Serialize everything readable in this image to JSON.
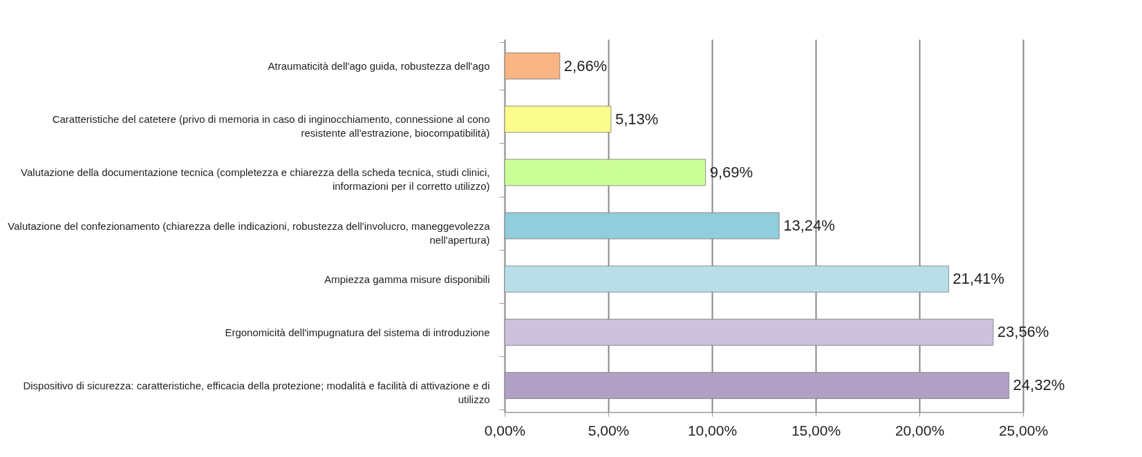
{
  "chart_data": {
    "type": "bar",
    "orientation": "horizontal",
    "categories": [
      "Atraumaticità dell'ago guida, robustezza dell'ago",
      "Caratteristiche del catetere (privo di memoria in caso di inginocchiamento, connessione al cono resistente all'estrazione, biocompatibilità)",
      "Valutazione della documentazione tecnica (completezza e chiarezza della scheda tecnica, studi clinici, informazioni per il corretto utilizzo)",
      "Valutazione del confezionamento (chiarezza delle indicazioni, robustezza dell'involucro, maneggevolezza nell'apertura)",
      "Ampiezza gamma misure disponibili",
      "Ergonomicità dell'impugnatura del sistema di introduzione",
      "Dispositivo di sicurezza: caratteristiche, efficacia della protezione; modalità e facilità di attivazione e di utilizzo"
    ],
    "values": [
      2.66,
      5.13,
      9.69,
      13.24,
      21.41,
      23.56,
      24.32
    ],
    "value_labels": [
      "2,66%",
      "5,13%",
      "9,69%",
      "13,24%",
      "21,41%",
      "23,56%",
      "24,32%"
    ],
    "colors": [
      "#f8b482",
      "#fafc8c",
      "#ccfe98",
      "#92cddc",
      "#b8dfe8",
      "#cdc1dc",
      "#b1a0c6"
    ],
    "xlim": [
      0,
      25
    ],
    "xticks": [
      {
        "value": 0,
        "label": "0,00%"
      },
      {
        "value": 5,
        "label": "5,00%"
      },
      {
        "value": 10,
        "label": "10,00%"
      },
      {
        "value": 15,
        "label": "15,00%"
      },
      {
        "value": 20,
        "label": "20,00%"
      },
      {
        "value": 25,
        "label": "25,00%"
      }
    ],
    "grid": "x"
  }
}
